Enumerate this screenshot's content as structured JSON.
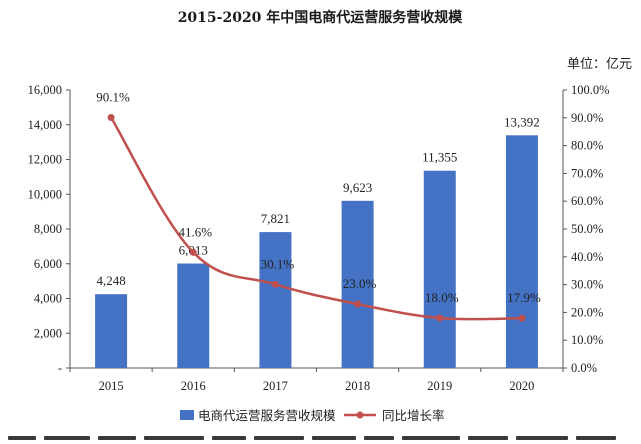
{
  "chart_data": {
    "type": "bar",
    "title": "2015-2020 年中国电商代运营服务营收规模",
    "unit_label": "单位：亿元",
    "categories": [
      "2015",
      "2016",
      "2017",
      "2018",
      "2019",
      "2020"
    ],
    "series": [
      {
        "name": "电商代运营服务营收规模",
        "kind": "bar",
        "axis": "left",
        "color": "#4472c4",
        "values": [
          4248,
          6013,
          7821,
          9623,
          11355,
          13392
        ],
        "labels": [
          "4,248",
          "6,013",
          "7,821",
          "9,623",
          "11,355",
          "13,392"
        ]
      },
      {
        "name": "同比增长率",
        "kind": "line",
        "axis": "right",
        "color": "#c0504d",
        "values": [
          90.1,
          41.6,
          30.1,
          23.0,
          18.0,
          17.9
        ],
        "labels": [
          "90.1%",
          "41.6%",
          "30.1%",
          "23.0%",
          "18.0%",
          "17.9%"
        ]
      }
    ],
    "left_axis": {
      "ylim": [
        0,
        16000
      ],
      "ticks": [
        0,
        2000,
        4000,
        6000,
        8000,
        10000,
        12000,
        14000,
        16000
      ],
      "tick_labels": [
        "-",
        "2,000",
        "4,000",
        "6,000",
        "8,000",
        "10,000",
        "12,000",
        "14,000",
        "16,000"
      ]
    },
    "right_axis": {
      "ylim": [
        0,
        100
      ],
      "ticks": [
        0,
        10,
        20,
        30,
        40,
        50,
        60,
        70,
        80,
        90,
        100
      ],
      "tick_labels": [
        "0.0%",
        "10.0%",
        "20.0%",
        "30.0%",
        "40.0%",
        "50.0%",
        "60.0%",
        "70.0%",
        "80.0%",
        "90.0%",
        "100.0%"
      ]
    },
    "grid": false,
    "legend": "bottom-center"
  }
}
